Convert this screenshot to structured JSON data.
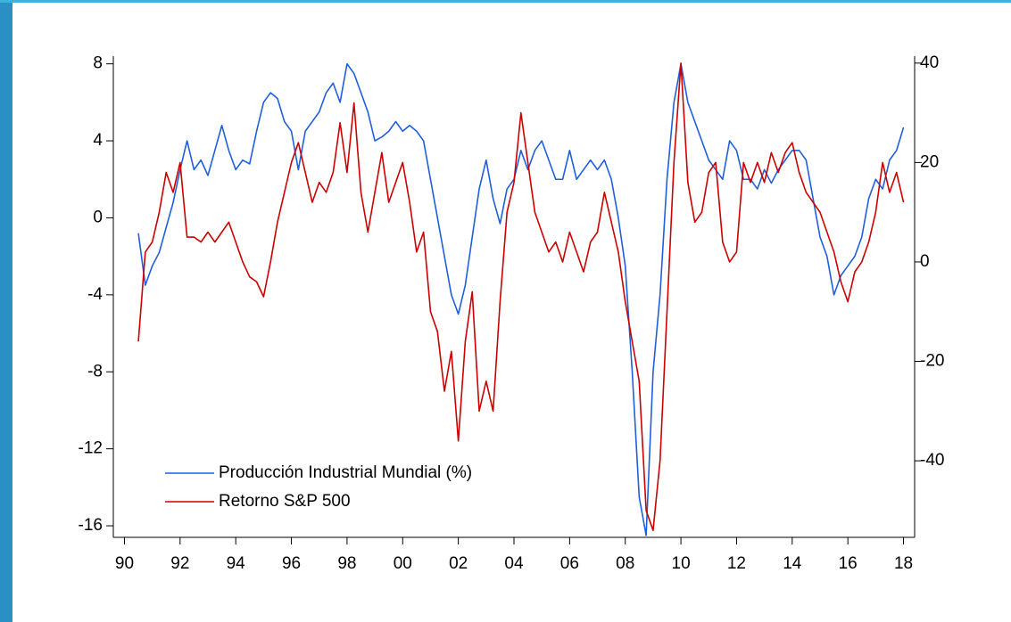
{
  "chart_data": {
    "type": "line",
    "x": [
      1990.5,
      1990.75,
      1991,
      1991.25,
      1991.5,
      1991.75,
      1992,
      1992.25,
      1992.5,
      1992.75,
      1993,
      1993.25,
      1993.5,
      1993.75,
      1994,
      1994.25,
      1994.5,
      1994.75,
      1995,
      1995.25,
      1995.5,
      1995.75,
      1996,
      1996.25,
      1996.5,
      1996.75,
      1997,
      1997.25,
      1997.5,
      1997.75,
      1998,
      1998.25,
      1998.5,
      1998.75,
      1999,
      1999.25,
      1999.5,
      1999.75,
      2000,
      2000.25,
      2000.5,
      2000.75,
      2001,
      2001.25,
      2001.5,
      2001.75,
      2002,
      2002.25,
      2002.5,
      2002.75,
      2003,
      2003.25,
      2003.5,
      2003.75,
      2004,
      2004.25,
      2004.5,
      2004.75,
      2005,
      2005.25,
      2005.5,
      2005.75,
      2006,
      2006.25,
      2006.5,
      2006.75,
      2007,
      2007.25,
      2007.5,
      2007.75,
      2008,
      2008.25,
      2008.5,
      2008.75,
      2009,
      2009.25,
      2009.5,
      2009.75,
      2010,
      2010.25,
      2010.5,
      2010.75,
      2011,
      2011.25,
      2011.5,
      2011.75,
      2012,
      2012.25,
      2012.5,
      2012.75,
      2013,
      2013.25,
      2013.5,
      2013.75,
      2014,
      2014.25,
      2014.5,
      2014.75,
      2015,
      2015.25,
      2015.5,
      2015.75,
      2016,
      2016.25,
      2016.5,
      2016.75,
      2017,
      2017.25,
      2017.5,
      2017.75,
      2018
    ],
    "series": [
      {
        "name": "Producción Industrial Mundial (%)",
        "color": "#1f5fdc",
        "values": [
          -0.8,
          -3.5,
          -2.5,
          -1.8,
          -0.5,
          0.8,
          2.5,
          4.0,
          2.5,
          3.0,
          2.2,
          3.5,
          4.8,
          3.5,
          2.5,
          3.0,
          2.8,
          4.5,
          6.0,
          6.5,
          6.2,
          5.0,
          4.5,
          2.5,
          4.5,
          5.0,
          5.5,
          6.5,
          7.0,
          6.0,
          8.0,
          7.5,
          6.5,
          5.5,
          4.0,
          4.2,
          4.5,
          5.0,
          4.5,
          4.8,
          4.5,
          4.0,
          2.0,
          0.0,
          -2.0,
          -4.0,
          -5.0,
          -3.5,
          -1.0,
          1.5,
          3.0,
          1.0,
          -0.3,
          1.5,
          2.0,
          3.5,
          2.5,
          3.5,
          4.0,
          3.0,
          2.0,
          2.0,
          3.5,
          2.0,
          2.5,
          3.0,
          2.5,
          3.0,
          2.0,
          0.0,
          -2.5,
          -8.0,
          -14.5,
          -16.5,
          -8.0,
          -4.0,
          2.0,
          6.0,
          8.0,
          6.0,
          5.0,
          4.0,
          3.0,
          2.5,
          2.0,
          4.0,
          3.5,
          2.0,
          2.0,
          1.5,
          2.5,
          1.8,
          2.5,
          3.0,
          3.5,
          3.5,
          3.0,
          1.0,
          -1.0,
          -2.0,
          -4.0,
          -3.0,
          -2.5,
          -2.0,
          -1.0,
          1.0,
          2.0,
          1.5,
          3.0,
          3.5,
          4.7
        ]
      },
      {
        "name": "Retorno S&P 500",
        "color": "#cc0000",
        "axis": "y2",
        "values": [
          -16,
          2,
          4,
          10,
          18,
          14,
          20,
          5,
          5,
          4,
          6,
          4,
          6,
          8,
          4,
          0,
          -3,
          -4,
          -7,
          0,
          8,
          14,
          20,
          24,
          18,
          12,
          16,
          14,
          18,
          28,
          18,
          32,
          14,
          6,
          14,
          22,
          12,
          16,
          20,
          12,
          2,
          6,
          -10,
          -14,
          -26,
          -18,
          -36,
          -16,
          -6,
          -30,
          -24,
          -30,
          -8,
          10,
          16,
          30,
          20,
          10,
          6,
          2,
          4,
          0,
          6,
          2,
          -2,
          4,
          6,
          14,
          8,
          2,
          -8,
          -16,
          -24,
          -50,
          -54,
          -40,
          -10,
          20,
          40,
          16,
          8,
          10,
          18,
          20,
          4,
          0,
          2,
          20,
          16,
          20,
          16,
          22,
          18,
          22,
          24,
          18,
          14,
          12,
          10,
          6,
          2,
          -4,
          -8,
          -2,
          0,
          4,
          10,
          20,
          14,
          18,
          12
        ]
      }
    ],
    "xlim": [
      1989.6,
      2018.4
    ],
    "xticks": [
      {
        "value": 1990,
        "label": "90"
      },
      {
        "value": 1992,
        "label": "92"
      },
      {
        "value": 1994,
        "label": "94"
      },
      {
        "value": 1996,
        "label": "96"
      },
      {
        "value": 1998,
        "label": "98"
      },
      {
        "value": 2000,
        "label": "00"
      },
      {
        "value": 2002,
        "label": "02"
      },
      {
        "value": 2004,
        "label": "04"
      },
      {
        "value": 2006,
        "label": "06"
      },
      {
        "value": 2008,
        "label": "08"
      },
      {
        "value": 2010,
        "label": "10"
      },
      {
        "value": 2012,
        "label": "12"
      },
      {
        "value": 2014,
        "label": "14"
      },
      {
        "value": 2016,
        "label": "16"
      },
      {
        "value": 2018,
        "label": "18"
      }
    ],
    "ylim": [
      -16.6,
      8.4
    ],
    "yticks": [
      -16,
      -12,
      -8,
      -4,
      0,
      4,
      8
    ],
    "y2lim": [
      -55.4,
      41.4
    ],
    "y2ticks": [
      -40,
      -20,
      0,
      20,
      40
    ],
    "grid": false,
    "legend": "lower left"
  }
}
